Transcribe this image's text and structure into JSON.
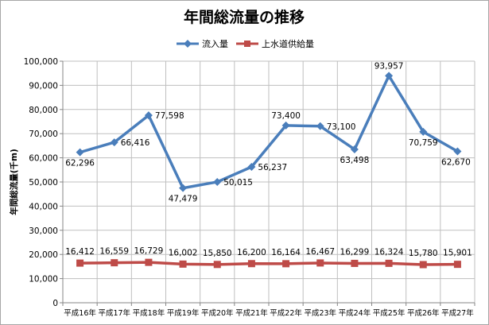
{
  "chart_data": {
    "type": "line",
    "title": "年間総流量の推移",
    "ylabel": "年間総流量(千m)",
    "xlabel": "",
    "categories": [
      "平成16年",
      "平成17年",
      "平成18年",
      "平成19年",
      "平成20年",
      "平成21年",
      "平成22年",
      "平成23年",
      "平成24年",
      "平成25年",
      "平成26年",
      "平成27年"
    ],
    "ylim": [
      0,
      100000
    ],
    "yticks": [
      0,
      10000,
      20000,
      30000,
      40000,
      50000,
      60000,
      70000,
      80000,
      90000,
      100000
    ],
    "ytick_labels": [
      "0",
      "10,000",
      "20,000",
      "30,000",
      "40,000",
      "50,000",
      "60,000",
      "70,000",
      "80,000",
      "90,000",
      "100,000"
    ],
    "grid": "horizontal and vertical",
    "legend_position": "top",
    "series": [
      {
        "name": "流入量",
        "color": "#4a7ebb",
        "marker": "diamond",
        "values": [
          62296,
          66416,
          77598,
          47479,
          50015,
          56237,
          73400,
          73100,
          63498,
          93957,
          70759,
          62670
        ],
        "labels": [
          "62,296",
          "66,416",
          "77,598",
          "47,479",
          "50,015",
          "56,237",
          "73,400",
          "73,100",
          "63,498",
          "93,957",
          "70,759",
          "62,670"
        ]
      },
      {
        "name": "上水道供給量",
        "color": "#be4b48",
        "marker": "square",
        "values": [
          16412,
          16559,
          16729,
          16002,
          15850,
          16200,
          16164,
          16467,
          16299,
          16324,
          15780,
          15901
        ],
        "labels": [
          "16,412",
          "16,559",
          "16,729",
          "16,002",
          "15,850",
          "16,200",
          "16,164",
          "16,467",
          "16,299",
          "16,324",
          "15,780",
          "15,901"
        ]
      }
    ]
  }
}
